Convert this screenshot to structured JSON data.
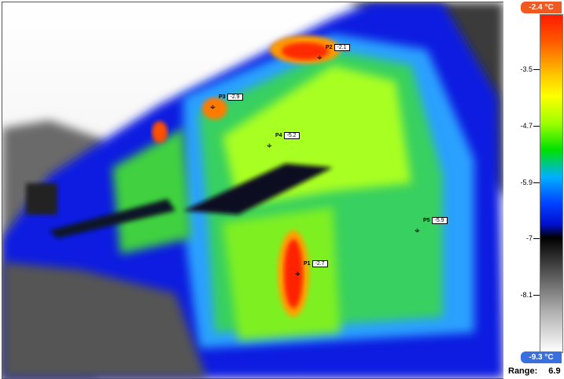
{
  "scale": {
    "max_label": "-2.4 °C",
    "min_label": "-9.3 °C",
    "ticks": [
      "-3.5",
      "-4.7",
      "-5.9",
      "-7",
      "-8.1"
    ],
    "range_label": "Range:",
    "range_value": "6.9",
    "colors": {
      "max_badge": "#f05a22",
      "min_badge": "#3a6fe0"
    }
  },
  "markers": [
    {
      "name": "P1",
      "value": "-2.7"
    },
    {
      "name": "P2",
      "value": "-2.1"
    },
    {
      "name": "P3",
      "value": "-2.9"
    },
    {
      "name": "P4",
      "value": "-5.2"
    },
    {
      "name": "P5",
      "value": "-5.9"
    }
  ]
}
